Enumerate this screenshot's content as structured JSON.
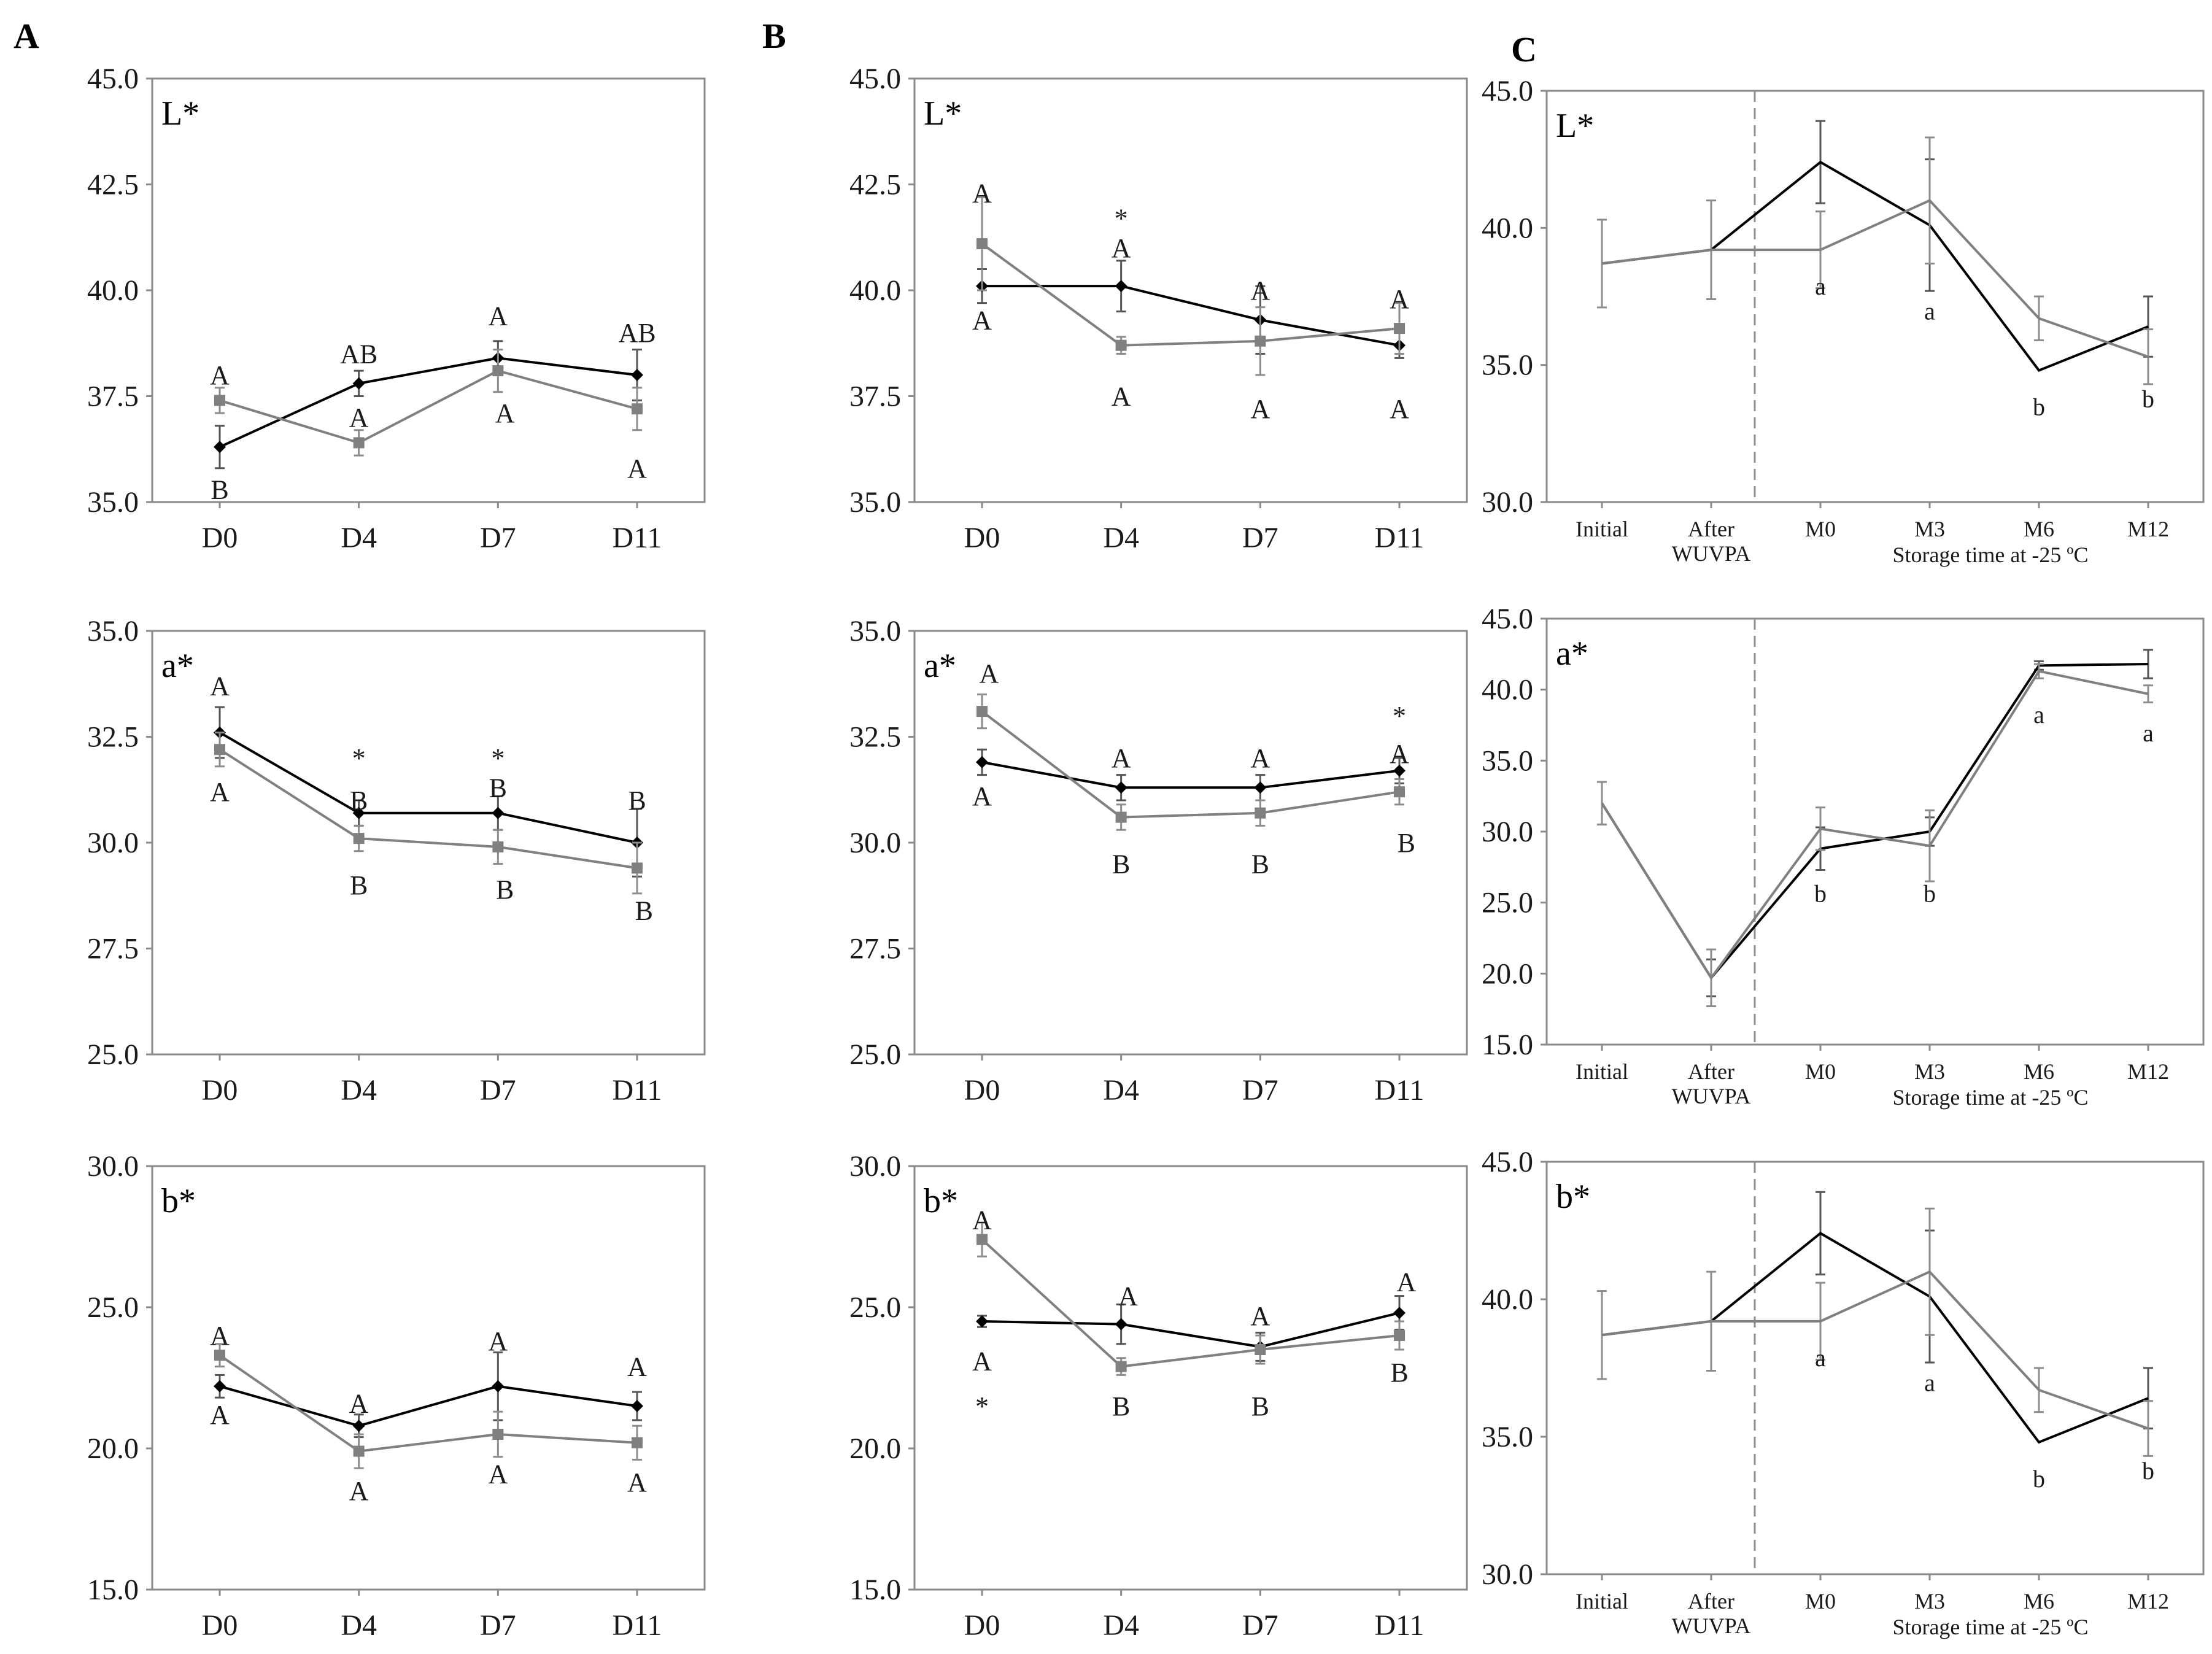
{
  "panel_labels": [
    "A",
    "B",
    "C"
  ],
  "colors": {
    "series_black": "#000000",
    "series_gray": "#808080",
    "frame": "#8a8a8a",
    "divider": "#909090"
  },
  "chart_data": [
    {
      "id": "A-L",
      "panel": "A",
      "type": "line",
      "title": "L*",
      "categories": [
        "D0",
        "D4",
        "D7",
        "D11"
      ],
      "ylim": [
        35,
        45
      ],
      "yticks": [
        "35.0",
        "37.5",
        "40.0",
        "42.5",
        "45.0"
      ],
      "series": [
        {
          "name": "black",
          "marker": "diamond",
          "values": [
            36.3,
            37.8,
            38.4,
            38.0
          ],
          "errors": [
            0.5,
            0.3,
            0.4,
            0.6
          ]
        },
        {
          "name": "gray",
          "marker": "square",
          "values": [
            37.4,
            36.4,
            38.1,
            37.2
          ],
          "errors": [
            0.3,
            0.3,
            0.5,
            0.5
          ]
        }
      ],
      "annotations": [
        {
          "text": "A",
          "cat": 0,
          "y": 38.0
        },
        {
          "text": "B",
          "cat": 0,
          "y": 35.3
        },
        {
          "text": "AB",
          "cat": 1,
          "y": 38.5
        },
        {
          "text": "A",
          "cat": 1,
          "y": 37.0
        },
        {
          "text": "A",
          "cat": 2,
          "y": 39.4
        },
        {
          "text": "A",
          "cat": 2.05,
          "y": 37.1
        },
        {
          "text": "AB",
          "cat": 3,
          "y": 39.0
        },
        {
          "text": "A",
          "cat": 3,
          "y": 35.8
        }
      ]
    },
    {
      "id": "A-a",
      "panel": "A",
      "type": "line",
      "title": "a*",
      "categories": [
        "D0",
        "D4",
        "D7",
        "D11"
      ],
      "ylim": [
        25,
        35
      ],
      "yticks": [
        "25.0",
        "27.5",
        "30.0",
        "32.5",
        "35.0"
      ],
      "series": [
        {
          "name": "black",
          "marker": "diamond",
          "values": [
            32.6,
            30.7,
            30.7,
            30.0
          ],
          "errors": [
            0.6,
            0.3,
            0.4,
            0.8
          ]
        },
        {
          "name": "gray",
          "marker": "square",
          "values": [
            32.2,
            30.1,
            29.9,
            29.4
          ],
          "errors": [
            0.4,
            0.3,
            0.4,
            0.6
          ]
        }
      ],
      "annotations": [
        {
          "text": "A",
          "cat": 0,
          "y": 33.7
        },
        {
          "text": "A",
          "cat": 0,
          "y": 31.2
        },
        {
          "text": "*",
          "cat": 1,
          "y": 32.0
        },
        {
          "text": "B",
          "cat": 1,
          "y": 31.0
        },
        {
          "text": "B",
          "cat": 1,
          "y": 29.0
        },
        {
          "text": "*",
          "cat": 2,
          "y": 32.0
        },
        {
          "text": "B",
          "cat": 2,
          "y": 31.3
        },
        {
          "text": "B",
          "cat": 2.05,
          "y": 28.9
        },
        {
          "text": "B",
          "cat": 3,
          "y": 31.0
        },
        {
          "text": "B",
          "cat": 3.05,
          "y": 28.4
        }
      ]
    },
    {
      "id": "A-b",
      "panel": "A",
      "type": "line",
      "title": "b*",
      "categories": [
        "D0",
        "D4",
        "D7",
        "D11"
      ],
      "ylim": [
        15,
        30
      ],
      "yticks": [
        "15.0",
        "20.0",
        "25.0",
        "30.0"
      ],
      "series": [
        {
          "name": "black",
          "marker": "diamond",
          "values": [
            22.2,
            20.8,
            22.2,
            21.5
          ],
          "errors": [
            0.4,
            0.4,
            1.2,
            0.5
          ]
        },
        {
          "name": "gray",
          "marker": "square",
          "values": [
            23.3,
            19.9,
            20.5,
            20.2
          ],
          "errors": [
            0.4,
            0.6,
            0.8,
            0.6
          ]
        }
      ],
      "annotations": [
        {
          "text": "A",
          "cat": 0,
          "y": 24.0
        },
        {
          "text": "A",
          "cat": 0,
          "y": 21.2
        },
        {
          "text": "A",
          "cat": 1,
          "y": 21.6
        },
        {
          "text": "A",
          "cat": 1,
          "y": 18.5
        },
        {
          "text": "A",
          "cat": 2,
          "y": 23.8
        },
        {
          "text": "A",
          "cat": 2,
          "y": 19.1
        },
        {
          "text": "A",
          "cat": 3,
          "y": 22.9
        },
        {
          "text": "A",
          "cat": 3,
          "y": 18.8
        }
      ]
    },
    {
      "id": "B-L",
      "panel": "B",
      "type": "line",
      "title": "L*",
      "categories": [
        "D0",
        "D4",
        "D7",
        "D11"
      ],
      "ylim": [
        35,
        45
      ],
      "yticks": [
        "35.0",
        "37.5",
        "40.0",
        "42.5",
        "45.0"
      ],
      "series": [
        {
          "name": "black",
          "marker": "diamond",
          "values": [
            40.1,
            40.1,
            39.3,
            38.7
          ],
          "errors": [
            0.4,
            0.6,
            0.8,
            0.3
          ]
        },
        {
          "name": "gray",
          "marker": "square",
          "values": [
            41.1,
            38.7,
            38.8,
            39.1
          ],
          "errors": [
            1.1,
            0.2,
            0.8,
            0.6
          ]
        }
      ],
      "annotations": [
        {
          "text": "A",
          "cat": 0,
          "y": 42.3
        },
        {
          "text": "A",
          "cat": 0,
          "y": 39.3
        },
        {
          "text": "*",
          "cat": 1,
          "y": 41.7
        },
        {
          "text": "A",
          "cat": 1,
          "y": 41.0
        },
        {
          "text": "A",
          "cat": 1,
          "y": 37.5
        },
        {
          "text": "A",
          "cat": 2,
          "y": 40.0
        },
        {
          "text": "A",
          "cat": 2,
          "y": 37.2
        },
        {
          "text": "A",
          "cat": 3,
          "y": 39.8
        },
        {
          "text": "A",
          "cat": 3,
          "y": 37.2
        }
      ]
    },
    {
      "id": "B-a",
      "panel": "B",
      "type": "line",
      "title": "a*",
      "categories": [
        "D0",
        "D4",
        "D7",
        "D11"
      ],
      "ylim": [
        25,
        35
      ],
      "yticks": [
        "25.0",
        "27.5",
        "30.0",
        "32.5",
        "35.0"
      ],
      "series": [
        {
          "name": "black",
          "marker": "diamond",
          "values": [
            31.9,
            31.3,
            31.3,
            31.7
          ],
          "errors": [
            0.3,
            0.3,
            0.3,
            0.3
          ]
        },
        {
          "name": "gray",
          "marker": "square",
          "values": [
            33.1,
            30.6,
            30.7,
            31.2
          ],
          "errors": [
            0.4,
            0.3,
            0.3,
            0.3
          ]
        }
      ],
      "annotations": [
        {
          "text": "A",
          "cat": 0.05,
          "y": 34.0
        },
        {
          "text": "A",
          "cat": 0,
          "y": 31.1
        },
        {
          "text": "A",
          "cat": 1,
          "y": 32.0
        },
        {
          "text": "B",
          "cat": 1,
          "y": 29.5
        },
        {
          "text": "A",
          "cat": 2,
          "y": 32.0
        },
        {
          "text": "B",
          "cat": 2,
          "y": 29.5
        },
        {
          "text": "*",
          "cat": 3,
          "y": 33.0
        },
        {
          "text": "A",
          "cat": 3,
          "y": 32.1
        },
        {
          "text": "B",
          "cat": 3.05,
          "y": 30.0
        }
      ]
    },
    {
      "id": "B-b",
      "panel": "B",
      "type": "line",
      "title": "b*",
      "categories": [
        "D0",
        "D4",
        "D7",
        "D11"
      ],
      "ylim": [
        15,
        30
      ],
      "yticks": [
        "15.0",
        "20.0",
        "25.0",
        "30.0"
      ],
      "series": [
        {
          "name": "black",
          "marker": "diamond",
          "values": [
            24.5,
            24.4,
            23.6,
            24.8
          ],
          "errors": [
            0.2,
            0.7,
            0.5,
            0.6
          ]
        },
        {
          "name": "gray",
          "marker": "square",
          "values": [
            27.4,
            22.9,
            23.5,
            24.0
          ],
          "errors": [
            0.6,
            0.3,
            0.5,
            0.5
          ]
        }
      ],
      "annotations": [
        {
          "text": "A",
          "cat": 0,
          "y": 28.1
        },
        {
          "text": "A",
          "cat": 0,
          "y": 23.1
        },
        {
          "text": "*",
          "cat": 0,
          "y": 21.5
        },
        {
          "text": "A",
          "cat": 1.05,
          "y": 25.4
        },
        {
          "text": "B",
          "cat": 1,
          "y": 21.5
        },
        {
          "text": "A",
          "cat": 2,
          "y": 24.7
        },
        {
          "text": "B",
          "cat": 2,
          "y": 21.5
        },
        {
          "text": "A",
          "cat": 3.05,
          "y": 25.9
        },
        {
          "text": "B",
          "cat": 3,
          "y": 22.7
        }
      ]
    },
    {
      "id": "C-L",
      "panel": "C",
      "type": "line",
      "title": "L*",
      "categories": [
        "Initial",
        "After WUVPA",
        "M0",
        "M3",
        "M6",
        "M12"
      ],
      "xlabel": "Storage time at -25 ºC",
      "ylim": [
        30,
        45
      ],
      "yticks": [
        "30.0",
        "35.0",
        "40.0",
        "45.0"
      ],
      "divider_after": 1,
      "series": [
        {
          "name": "black",
          "values": [
            38.7,
            39.2,
            42.4,
            40.1,
            34.8,
            36.4
          ],
          "errors": [
            0,
            0,
            1.5,
            2.4,
            0,
            1.1
          ]
        },
        {
          "name": "gray",
          "values": [
            38.7,
            39.2,
            39.2,
            41.0,
            36.7,
            35.3
          ],
          "errors": [
            1.6,
            1.8,
            1.4,
            2.3,
            0.8,
            1.0
          ]
        }
      ],
      "annotations": [
        {
          "text": "a",
          "cat": 2,
          "y": 37.9
        },
        {
          "text": "a",
          "cat": 3,
          "y": 37.0
        },
        {
          "text": "b",
          "cat": 4,
          "y": 33.5
        },
        {
          "text": "b",
          "cat": 5,
          "y": 33.8
        }
      ]
    },
    {
      "id": "C-a",
      "panel": "C",
      "type": "line",
      "title": "a*",
      "categories": [
        "Initial",
        "After WUVPA",
        "M0",
        "M3",
        "M6",
        "M12"
      ],
      "xlabel": "Storage time at -25 ºC",
      "ylim": [
        15,
        45
      ],
      "yticks": [
        "15.0",
        "20.0",
        "25.0",
        "30.0",
        "35.0",
        "40.0",
        "45.0"
      ],
      "divider_after": 1,
      "series": [
        {
          "name": "black",
          "values": [
            32.0,
            19.7,
            28.8,
            30.0,
            41.7,
            41.8
          ],
          "errors": [
            1.5,
            1.3,
            1.5,
            1.0,
            0.3,
            1.0
          ]
        },
        {
          "name": "gray",
          "values": [
            32.0,
            19.7,
            30.2,
            29.0,
            41.3,
            39.7
          ],
          "errors": [
            1.5,
            2.0,
            1.5,
            2.5,
            0.5,
            0.6
          ]
        }
      ],
      "annotations": [
        {
          "text": "b",
          "cat": 2,
          "y": 25.7
        },
        {
          "text": "b",
          "cat": 3,
          "y": 25.7
        },
        {
          "text": "a",
          "cat": 4,
          "y": 38.3
        },
        {
          "text": "a",
          "cat": 5,
          "y": 37.0
        }
      ]
    },
    {
      "id": "C-b",
      "panel": "C",
      "type": "line",
      "title": "b*",
      "categories": [
        "Initial",
        "After WUVPA",
        "M0",
        "M3",
        "M6",
        "M12"
      ],
      "xlabel": "Storage time at -25 ºC",
      "ylim": [
        30,
        45
      ],
      "yticks": [
        "30.0",
        "35.0",
        "40.0",
        "45.0"
      ],
      "divider_after": 1,
      "series": [
        {
          "name": "black",
          "values": [
            38.7,
            39.2,
            42.4,
            40.1,
            34.8,
            36.4
          ],
          "errors": [
            0,
            0,
            1.5,
            2.4,
            0,
            1.1
          ]
        },
        {
          "name": "gray",
          "values": [
            38.7,
            39.2,
            39.2,
            41.0,
            36.7,
            35.3
          ],
          "errors": [
            1.6,
            1.8,
            1.4,
            2.3,
            0.8,
            1.0
          ]
        }
      ],
      "annotations": [
        {
          "text": "a",
          "cat": 2,
          "y": 37.9
        },
        {
          "text": "a",
          "cat": 3,
          "y": 37.0
        },
        {
          "text": "b",
          "cat": 4,
          "y": 33.5
        },
        {
          "text": "b",
          "cat": 5,
          "y": 33.8
        }
      ]
    }
  ]
}
